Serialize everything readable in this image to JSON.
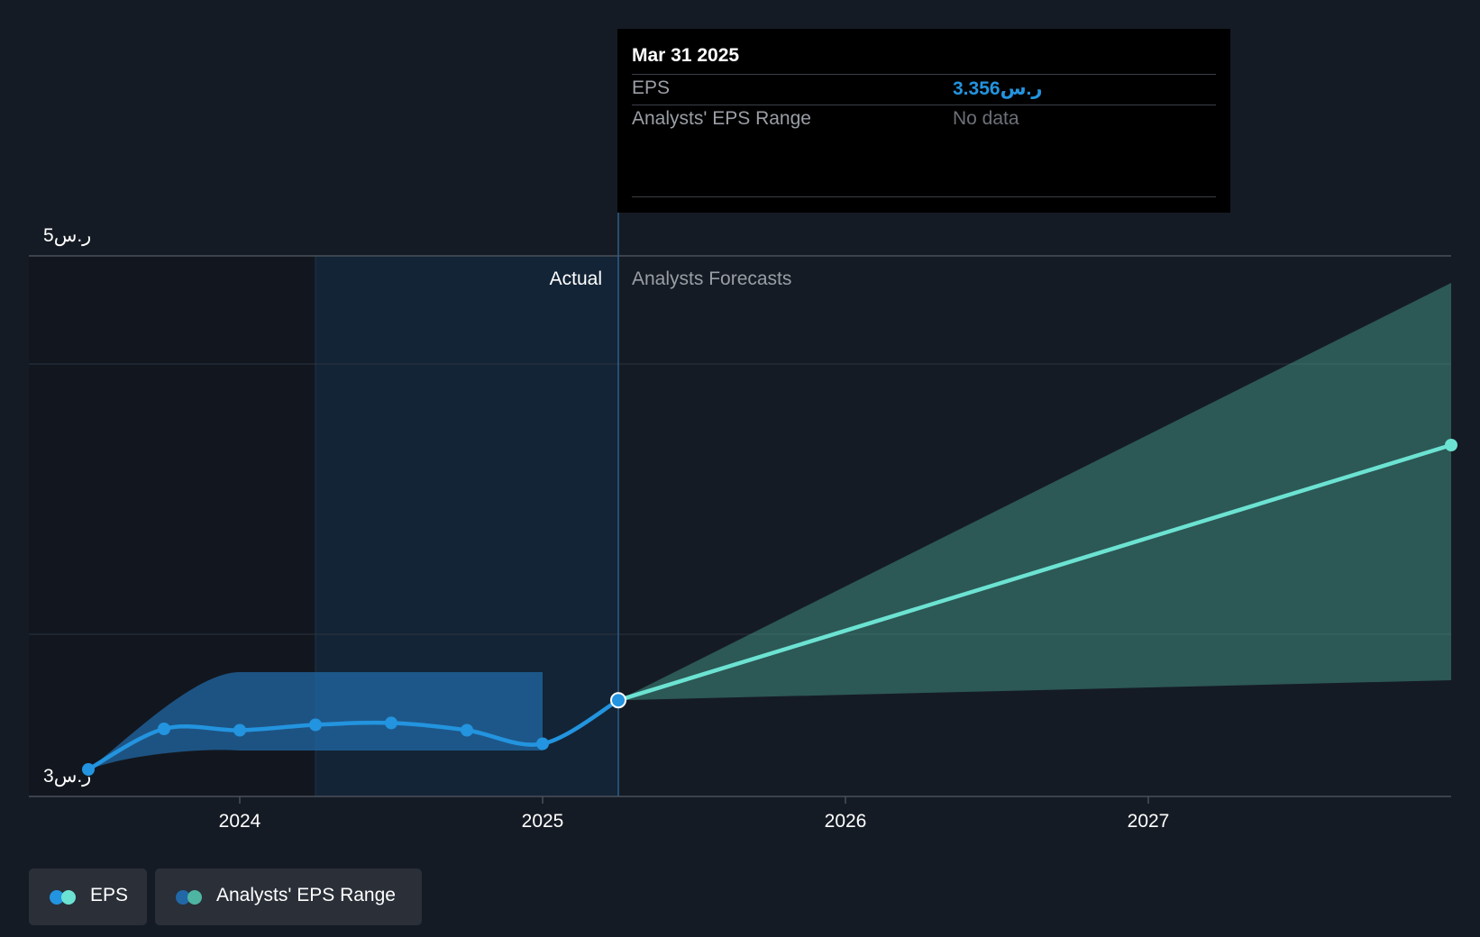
{
  "chart_data": {
    "type": "line",
    "y_tick_labels": [
      "ر.س5",
      "ر.س3"
    ],
    "x_tick_labels": [
      "2024",
      "2025",
      "2026",
      "2027"
    ],
    "ylim": [
      3,
      5
    ],
    "region_labels": {
      "actual": "Actual",
      "forecast": "Analysts Forecasts"
    },
    "series": [
      {
        "name": "EPS",
        "color": "#2394df",
        "x": [
          2023.5,
          2023.75,
          2024.0,
          2024.25,
          2024.5,
          2024.75,
          2025.0,
          2025.25
        ],
        "y": [
          3.1,
          3.25,
          3.245,
          3.265,
          3.272,
          3.245,
          3.195,
          3.356
        ]
      },
      {
        "name": "EPS",
        "color": "#6ce3d2",
        "x": [
          2025.25,
          2027.99
        ],
        "y": [
          3.356,
          4.3
        ]
      }
    ],
    "actual_range": {
      "color": "#2268a6",
      "x": [
        2023.5,
        2023.75,
        2024.0,
        2025.0
      ],
      "low": [
        3.1,
        3.18,
        3.17,
        3.17
      ],
      "high": [
        3.1,
        3.3,
        3.46,
        3.46
      ]
    },
    "forecast_range": {
      "color": "#4fb5a3",
      "x": [
        2025.25,
        2027.99
      ],
      "low": [
        3.356,
        3.43
      ],
      "high": [
        3.356,
        4.9
      ]
    },
    "grid": true
  },
  "tooltip": {
    "date": "Mar 31 2025",
    "eps_label": "EPS",
    "eps_value": "3.356ر.س",
    "range_label": "Analysts' EPS Range",
    "range_value": "No data"
  },
  "legend": {
    "eps_label": "EPS",
    "range_label": "Analysts' EPS Range",
    "eps_colors": [
      "#2394df",
      "#6ce3d2"
    ],
    "range_colors": [
      "#2268a6",
      "#4fb5a3"
    ]
  }
}
